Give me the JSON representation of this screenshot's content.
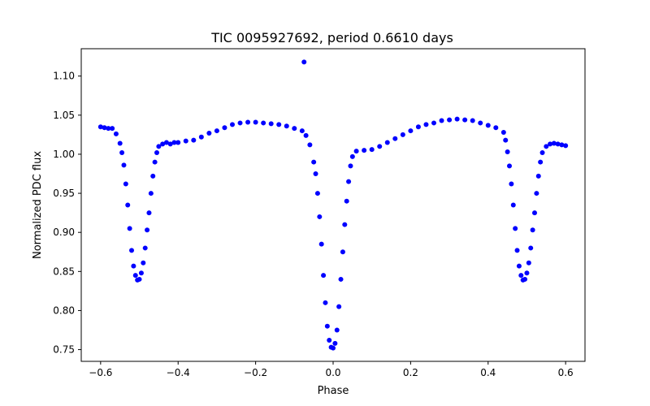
{
  "chart_data": {
    "type": "scatter",
    "title": "TIC 0095927692, period 0.6610 days",
    "xlabel": "Phase",
    "ylabel": "Normalized PDC flux",
    "xlim": [
      -0.65,
      0.65
    ],
    "ylim": [
      0.735,
      1.135
    ],
    "xticks": [
      -0.6,
      -0.4,
      -0.2,
      0.0,
      0.2,
      0.4,
      0.6
    ],
    "xtick_labels": [
      "−0.6",
      "−0.4",
      "−0.2",
      "0.0",
      "0.2",
      "0.4",
      "0.6"
    ],
    "yticks": [
      0.75,
      0.8,
      0.85,
      0.9,
      0.95,
      1.0,
      1.05,
      1.1
    ],
    "ytick_labels": [
      "0.75",
      "0.80",
      "0.85",
      "0.90",
      "0.95",
      "1.00",
      "1.05",
      "1.10"
    ],
    "grid": false,
    "marker_color": "#0000ff",
    "series": [
      {
        "x": [
          -0.6,
          -0.59,
          -0.58,
          -0.57,
          -0.56,
          -0.55,
          -0.545,
          -0.54,
          -0.535,
          -0.53,
          -0.525,
          -0.52,
          -0.515,
          -0.51,
          -0.505,
          -0.5,
          -0.495,
          -0.49,
          -0.485,
          -0.48,
          -0.475,
          -0.47,
          -0.465,
          -0.46,
          -0.455,
          -0.45,
          -0.44,
          -0.43,
          -0.42,
          -0.41,
          -0.4,
          -0.38,
          -0.36,
          -0.34,
          -0.32,
          -0.3,
          -0.28,
          -0.26,
          -0.24,
          -0.22,
          -0.2,
          -0.18,
          -0.16,
          -0.14,
          -0.12,
          -0.1,
          -0.08,
          -0.07,
          -0.06,
          -0.05,
          -0.045,
          -0.04,
          -0.035,
          -0.03,
          -0.025,
          -0.02,
          -0.015,
          -0.01,
          -0.005,
          0.0,
          0.005,
          0.01,
          0.015,
          0.02,
          0.025,
          0.03,
          0.035,
          0.04,
          0.045,
          0.05,
          0.06,
          0.08,
          0.1,
          0.12,
          0.14,
          0.16,
          0.18,
          0.2,
          0.22,
          0.24,
          0.26,
          0.28,
          0.3,
          0.32,
          0.34,
          0.36,
          0.38,
          0.4,
          0.42,
          0.44,
          0.445,
          0.45,
          0.455,
          0.46,
          0.465,
          0.47,
          0.475,
          0.48,
          0.485,
          0.49,
          0.495,
          0.5,
          0.505,
          0.51,
          0.515,
          0.52,
          0.525,
          0.53,
          0.535,
          0.54,
          0.55,
          0.56,
          0.57,
          0.58,
          0.59,
          0.6,
          -0.075
        ],
        "y": [
          1.035,
          1.034,
          1.033,
          1.033,
          1.026,
          1.014,
          1.002,
          0.986,
          0.962,
          0.935,
          0.905,
          0.877,
          0.857,
          0.845,
          0.839,
          0.84,
          0.848,
          0.861,
          0.88,
          0.903,
          0.925,
          0.95,
          0.972,
          0.99,
          1.002,
          1.01,
          1.013,
          1.015,
          1.013,
          1.015,
          1.015,
          1.017,
          1.018,
          1.022,
          1.027,
          1.03,
          1.034,
          1.038,
          1.04,
          1.041,
          1.041,
          1.04,
          1.039,
          1.038,
          1.036,
          1.033,
          1.03,
          1.024,
          1.012,
          0.99,
          0.975,
          0.95,
          0.92,
          0.885,
          0.845,
          0.81,
          0.78,
          0.762,
          0.753,
          0.752,
          0.758,
          0.775,
          0.805,
          0.84,
          0.875,
          0.91,
          0.94,
          0.965,
          0.985,
          0.997,
          1.004,
          1.005,
          1.006,
          1.01,
          1.015,
          1.02,
          1.025,
          1.03,
          1.035,
          1.038,
          1.04,
          1.043,
          1.044,
          1.045,
          1.044,
          1.043,
          1.04,
          1.037,
          1.034,
          1.028,
          1.018,
          1.003,
          0.985,
          0.962,
          0.935,
          0.905,
          0.877,
          0.857,
          0.845,
          0.839,
          0.84,
          0.848,
          0.861,
          0.88,
          0.903,
          0.925,
          0.95,
          0.972,
          0.99,
          1.002,
          1.01,
          1.013,
          1.014,
          1.013,
          1.012,
          1.011,
          1.118
        ]
      }
    ]
  }
}
